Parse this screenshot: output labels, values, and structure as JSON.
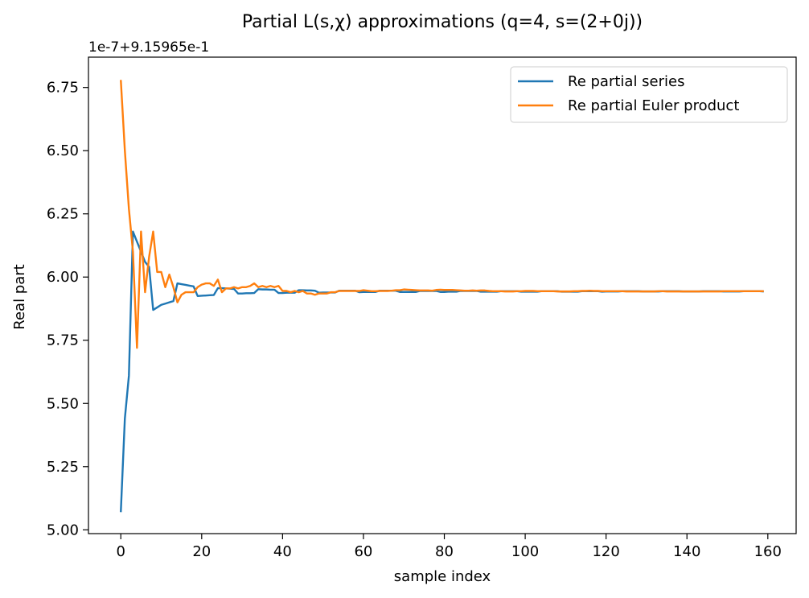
{
  "chart_data": {
    "type": "line",
    "title": "Partial L(s,χ) approximations (q=4, s=(2+0j))",
    "offset_label": "1e-7+9.15965e-1",
    "xlabel": "sample index",
    "ylabel": "Real part",
    "xlim": [
      -8,
      167
    ],
    "ylim": [
      4.985,
      6.87
    ],
    "xticks": [
      0,
      20,
      40,
      60,
      80,
      100,
      120,
      140,
      160
    ],
    "yticks": [
      5.0,
      5.25,
      5.5,
      5.75,
      6.0,
      6.25,
      6.5,
      6.75
    ],
    "ytick_labels": [
      "5.00",
      "5.25",
      "5.50",
      "5.75",
      "6.00",
      "6.25",
      "6.50",
      "6.75"
    ],
    "legend_position": "upper-right",
    "grid": false,
    "series": [
      {
        "name": "Re partial series",
        "color": "#1f77b4",
        "points": [
          [
            0,
            5.07
          ],
          [
            1,
            5.44
          ],
          [
            2,
            5.61
          ],
          [
            3,
            6.18
          ],
          [
            4,
            6.14
          ],
          [
            5,
            6.1
          ],
          [
            6,
            6.06
          ],
          [
            7,
            6.04
          ],
          [
            8,
            5.87
          ],
          [
            9,
            5.88
          ],
          [
            10,
            5.89
          ],
          [
            11,
            5.895
          ],
          [
            12,
            5.9
          ],
          [
            13,
            5.905
          ],
          [
            14,
            5.975
          ],
          [
            15,
            5.972
          ],
          [
            16,
            5.969
          ],
          [
            17,
            5.966
          ],
          [
            18,
            5.963
          ],
          [
            19,
            5.925
          ],
          [
            20,
            5.926
          ],
          [
            21,
            5.927
          ],
          [
            22,
            5.928
          ],
          [
            23,
            5.929
          ],
          [
            24,
            5.956
          ],
          [
            25,
            5.956
          ],
          [
            26,
            5.955
          ],
          [
            27,
            5.954
          ],
          [
            28,
            5.953
          ],
          [
            29,
            5.935
          ],
          [
            30,
            5.935
          ],
          [
            31,
            5.936
          ],
          [
            32,
            5.936
          ],
          [
            33,
            5.937
          ],
          [
            34,
            5.952
          ],
          [
            35,
            5.951
          ],
          [
            36,
            5.951
          ],
          [
            37,
            5.95
          ],
          [
            38,
            5.95
          ],
          [
            39,
            5.937
          ],
          [
            40,
            5.937
          ],
          [
            41,
            5.938
          ],
          [
            42,
            5.938
          ],
          [
            43,
            5.938
          ],
          [
            44,
            5.948
          ],
          [
            45,
            5.948
          ],
          [
            46,
            5.947
          ],
          [
            47,
            5.947
          ],
          [
            48,
            5.946
          ],
          [
            49,
            5.938
          ],
          [
            50,
            5.939
          ],
          [
            51,
            5.939
          ],
          [
            52,
            5.939
          ],
          [
            53,
            5.939
          ],
          [
            54,
            5.946
          ],
          [
            55,
            5.946
          ],
          [
            56,
            5.946
          ],
          [
            57,
            5.946
          ],
          [
            58,
            5.946
          ],
          [
            59,
            5.94
          ],
          [
            60,
            5.941
          ],
          [
            61,
            5.941
          ],
          [
            62,
            5.941
          ],
          [
            63,
            5.941
          ],
          [
            64,
            5.946
          ],
          [
            65,
            5.946
          ],
          [
            66,
            5.946
          ],
          [
            67,
            5.946
          ],
          [
            68,
            5.946
          ],
          [
            69,
            5.941
          ],
          [
            70,
            5.941
          ],
          [
            71,
            5.941
          ],
          [
            72,
            5.941
          ],
          [
            73,
            5.941
          ],
          [
            74,
            5.945
          ],
          [
            75,
            5.945
          ],
          [
            76,
            5.945
          ],
          [
            77,
            5.945
          ],
          [
            78,
            5.945
          ],
          [
            79,
            5.941
          ],
          [
            80,
            5.941
          ],
          [
            81,
            5.942
          ],
          [
            82,
            5.942
          ],
          [
            83,
            5.942
          ],
          [
            84,
            5.945
          ],
          [
            85,
            5.945
          ],
          [
            86,
            5.945
          ],
          [
            87,
            5.945
          ],
          [
            88,
            5.945
          ],
          [
            89,
            5.942
          ],
          [
            90,
            5.942
          ],
          [
            91,
            5.942
          ],
          [
            92,
            5.942
          ],
          [
            93,
            5.942
          ],
          [
            94,
            5.944
          ],
          [
            95,
            5.944
          ],
          [
            96,
            5.944
          ],
          [
            97,
            5.944
          ],
          [
            98,
            5.944
          ],
          [
            99,
            5.942
          ],
          [
            100,
            5.942
          ],
          [
            101,
            5.942
          ],
          [
            102,
            5.942
          ],
          [
            103,
            5.942
          ],
          [
            104,
            5.944
          ],
          [
            105,
            5.944
          ],
          [
            106,
            5.944
          ],
          [
            107,
            5.944
          ],
          [
            108,
            5.944
          ],
          [
            109,
            5.942
          ],
          [
            110,
            5.942
          ],
          [
            111,
            5.942
          ],
          [
            112,
            5.942
          ],
          [
            113,
            5.942
          ],
          [
            114,
            5.944
          ],
          [
            115,
            5.944
          ],
          [
            116,
            5.944
          ],
          [
            117,
            5.944
          ],
          [
            118,
            5.944
          ],
          [
            119,
            5.942
          ],
          [
            120,
            5.943
          ],
          [
            121,
            5.943
          ],
          [
            122,
            5.943
          ],
          [
            123,
            5.943
          ],
          [
            124,
            5.944
          ],
          [
            125,
            5.944
          ],
          [
            126,
            5.944
          ],
          [
            127,
            5.944
          ],
          [
            128,
            5.944
          ],
          [
            129,
            5.943
          ],
          [
            130,
            5.943
          ],
          [
            131,
            5.943
          ],
          [
            132,
            5.943
          ],
          [
            133,
            5.943
          ],
          [
            134,
            5.944
          ],
          [
            135,
            5.944
          ],
          [
            136,
            5.944
          ],
          [
            137,
            5.944
          ],
          [
            138,
            5.944
          ],
          [
            139,
            5.943
          ],
          [
            140,
            5.943
          ],
          [
            141,
            5.943
          ],
          [
            142,
            5.943
          ],
          [
            143,
            5.943
          ],
          [
            144,
            5.944
          ],
          [
            145,
            5.944
          ],
          [
            146,
            5.944
          ],
          [
            147,
            5.944
          ],
          [
            148,
            5.944
          ],
          [
            149,
            5.943
          ],
          [
            150,
            5.943
          ],
          [
            151,
            5.943
          ],
          [
            152,
            5.943
          ],
          [
            153,
            5.943
          ],
          [
            154,
            5.944
          ],
          [
            155,
            5.944
          ],
          [
            156,
            5.944
          ],
          [
            157,
            5.944
          ],
          [
            158,
            5.944
          ],
          [
            159,
            5.943
          ]
        ]
      },
      {
        "name": "Re partial Euler product",
        "color": "#ff7f0e",
        "points": [
          [
            0,
            6.78
          ],
          [
            1,
            6.5
          ],
          [
            2,
            6.27
          ],
          [
            3,
            6.1
          ],
          [
            4,
            5.72
          ],
          [
            5,
            6.18
          ],
          [
            6,
            5.94
          ],
          [
            7,
            6.08
          ],
          [
            8,
            6.18
          ],
          [
            9,
            6.02
          ],
          [
            10,
            6.02
          ],
          [
            11,
            5.96
          ],
          [
            12,
            6.01
          ],
          [
            13,
            5.96
          ],
          [
            14,
            5.9
          ],
          [
            15,
            5.93
          ],
          [
            16,
            5.94
          ],
          [
            17,
            5.94
          ],
          [
            18,
            5.94
          ],
          [
            19,
            5.96
          ],
          [
            20,
            5.97
          ],
          [
            21,
            5.975
          ],
          [
            22,
            5.975
          ],
          [
            23,
            5.965
          ],
          [
            24,
            5.99
          ],
          [
            25,
            5.94
          ],
          [
            26,
            5.955
          ],
          [
            27,
            5.955
          ],
          [
            28,
            5.96
          ],
          [
            29,
            5.955
          ],
          [
            30,
            5.96
          ],
          [
            31,
            5.96
          ],
          [
            32,
            5.965
          ],
          [
            33,
            5.975
          ],
          [
            34,
            5.96
          ],
          [
            35,
            5.965
          ],
          [
            36,
            5.96
          ],
          [
            37,
            5.965
          ],
          [
            38,
            5.96
          ],
          [
            39,
            5.965
          ],
          [
            40,
            5.945
          ],
          [
            41,
            5.945
          ],
          [
            42,
            5.94
          ],
          [
            43,
            5.945
          ],
          [
            44,
            5.94
          ],
          [
            45,
            5.945
          ],
          [
            46,
            5.935
          ],
          [
            47,
            5.935
          ],
          [
            48,
            5.93
          ],
          [
            49,
            5.935
          ],
          [
            50,
            5.935
          ],
          [
            51,
            5.935
          ],
          [
            52,
            5.94
          ],
          [
            53,
            5.94
          ],
          [
            54,
            5.945
          ],
          [
            55,
            5.945
          ],
          [
            56,
            5.945
          ],
          [
            57,
            5.945
          ],
          [
            58,
            5.945
          ],
          [
            59,
            5.945
          ],
          [
            60,
            5.948
          ],
          [
            61,
            5.946
          ],
          [
            62,
            5.944
          ],
          [
            63,
            5.944
          ],
          [
            64,
            5.945
          ],
          [
            65,
            5.945
          ],
          [
            66,
            5.945
          ],
          [
            67,
            5.946
          ],
          [
            68,
            5.948
          ],
          [
            69,
            5.948
          ],
          [
            70,
            5.951
          ],
          [
            71,
            5.95
          ],
          [
            72,
            5.949
          ],
          [
            73,
            5.948
          ],
          [
            74,
            5.947
          ],
          [
            75,
            5.947
          ],
          [
            76,
            5.947
          ],
          [
            77,
            5.946
          ],
          [
            78,
            5.949
          ],
          [
            79,
            5.95
          ],
          [
            80,
            5.949
          ],
          [
            81,
            5.949
          ],
          [
            82,
            5.949
          ],
          [
            83,
            5.948
          ],
          [
            84,
            5.947
          ],
          [
            85,
            5.946
          ],
          [
            86,
            5.946
          ],
          [
            87,
            5.947
          ],
          [
            88,
            5.946
          ],
          [
            89,
            5.947
          ],
          [
            90,
            5.947
          ],
          [
            91,
            5.945
          ],
          [
            92,
            5.944
          ],
          [
            93,
            5.944
          ],
          [
            94,
            5.944
          ],
          [
            95,
            5.943
          ],
          [
            96,
            5.943
          ],
          [
            97,
            5.943
          ],
          [
            98,
            5.944
          ],
          [
            99,
            5.944
          ],
          [
            100,
            5.945
          ],
          [
            101,
            5.945
          ],
          [
            102,
            5.945
          ],
          [
            103,
            5.944
          ],
          [
            104,
            5.944
          ],
          [
            105,
            5.944
          ],
          [
            106,
            5.944
          ],
          [
            107,
            5.944
          ],
          [
            108,
            5.943
          ],
          [
            109,
            5.943
          ],
          [
            110,
            5.943
          ],
          [
            111,
            5.943
          ],
          [
            112,
            5.944
          ],
          [
            113,
            5.944
          ],
          [
            114,
            5.945
          ],
          [
            115,
            5.945
          ],
          [
            116,
            5.946
          ],
          [
            117,
            5.945
          ],
          [
            118,
            5.945
          ],
          [
            119,
            5.944
          ],
          [
            120,
            5.944
          ],
          [
            121,
            5.944
          ],
          [
            122,
            5.944
          ],
          [
            123,
            5.944
          ],
          [
            124,
            5.944
          ],
          [
            125,
            5.943
          ],
          [
            126,
            5.943
          ],
          [
            127,
            5.943
          ],
          [
            128,
            5.943
          ],
          [
            129,
            5.943
          ],
          [
            130,
            5.943
          ],
          [
            131,
            5.943
          ],
          [
            132,
            5.943
          ],
          [
            133,
            5.944
          ],
          [
            134,
            5.944
          ],
          [
            135,
            5.943
          ],
          [
            136,
            5.943
          ],
          [
            137,
            5.943
          ],
          [
            138,
            5.943
          ],
          [
            139,
            5.943
          ],
          [
            140,
            5.943
          ],
          [
            141,
            5.943
          ],
          [
            142,
            5.943
          ],
          [
            143,
            5.943
          ],
          [
            144,
            5.943
          ],
          [
            145,
            5.943
          ],
          [
            146,
            5.943
          ],
          [
            147,
            5.943
          ],
          [
            148,
            5.943
          ],
          [
            149,
            5.944
          ],
          [
            150,
            5.944
          ],
          [
            151,
            5.944
          ],
          [
            152,
            5.944
          ],
          [
            153,
            5.944
          ],
          [
            154,
            5.944
          ],
          [
            155,
            5.944
          ],
          [
            156,
            5.944
          ],
          [
            157,
            5.944
          ],
          [
            158,
            5.944
          ],
          [
            159,
            5.944
          ]
        ]
      }
    ]
  }
}
